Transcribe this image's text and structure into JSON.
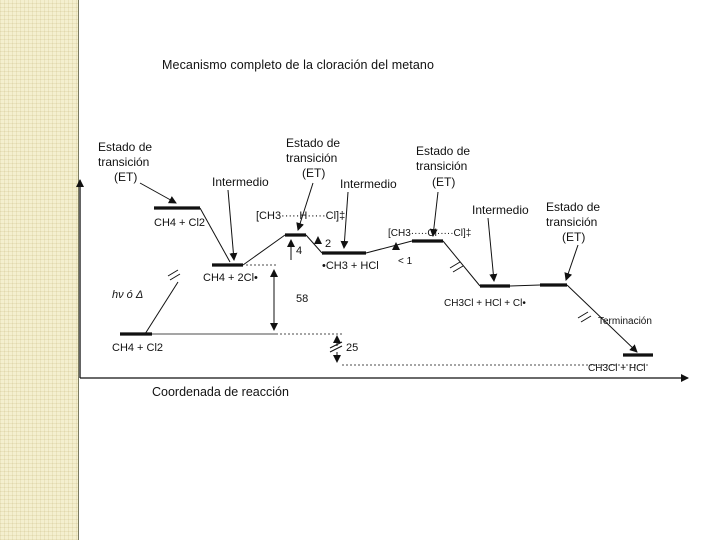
{
  "title": "Mecanismo completo de la cloración del metano",
  "labels": {
    "et1_line1": "Estado de",
    "et1_line2": "transición",
    "et1_line3": "(ET)",
    "et2_line1": "Estado de",
    "et2_line2": "transición",
    "et2_line3": "(ET)",
    "et3_line1": "Estado de",
    "et3_line2": "transición",
    "et3_line3": "(ET)",
    "et4_line1": "Estado de",
    "et4_line2": "transición",
    "et4_line3": "(ET)",
    "intermedio1": "Intermedio",
    "intermedio2": "Intermedio",
    "intermedio3": "Intermedio",
    "ts1_bracket": "[CH3·····H·····Cl]‡",
    "ts2_bracket": "[CH3·····Cl·····Cl]‡",
    "species_reactants_top": "CH4 + Cl2",
    "species_radical": "CH4 + 2Cl•",
    "species_ch3_hcl": "•CH3 + HCl",
    "species_products_mid": "CH3Cl + HCl + Cl•",
    "species_start": "CH4 + Cl2",
    "species_final": "CH3Cl + HCl",
    "hv": "hν  ó Δ",
    "terminacion": "Terminación",
    "xlabel": "Coordenada de reacción"
  },
  "energy_annotations": {
    "e58": "58",
    "e4": "4",
    "e2": "2",
    "e25": "25",
    "e_lt1": "< 1"
  }
}
